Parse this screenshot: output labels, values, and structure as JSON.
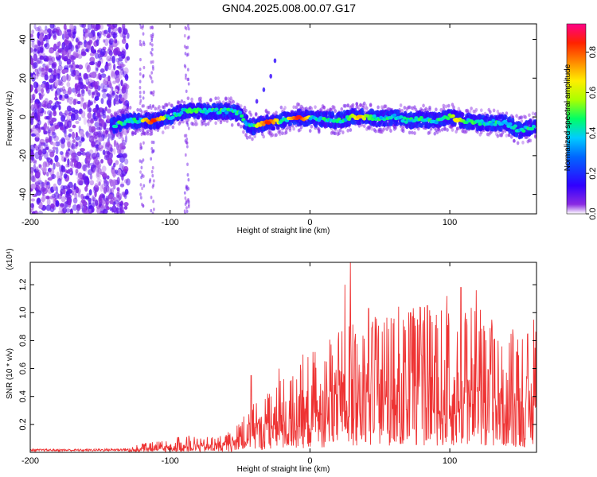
{
  "title": "GN04.2025.008.00.07.G17",
  "chart_data": [
    {
      "type": "heatmap",
      "xlabel": "Height of straight line (km)",
      "ylabel": "Frequency (Hz)",
      "xlim": [
        -200,
        162
      ],
      "ylim": [
        -50,
        48
      ],
      "xticks": [
        -200,
        -100,
        0,
        100
      ],
      "yticks": [
        -40,
        -20,
        0,
        20,
        40
      ],
      "grid": false,
      "colorbar": {
        "label": "Normalized spectral amplitude",
        "range": [
          0.0,
          0.94
        ],
        "ticks": [
          "0.0",
          "0.2",
          "0.4",
          "0.6",
          "0.8"
        ],
        "colormap": "rainbow",
        "stops": [
          "#ffffff",
          "#6a00ff",
          "#0000ff",
          "#00ccff",
          "#00ff66",
          "#ccff00",
          "#ffcc00",
          "#ff3300",
          "#ff0088"
        ]
      },
      "ridge": [
        {
          "x": -140,
          "y": -4.5
        },
        {
          "x": -130,
          "y": -2
        },
        {
          "x": -120,
          "y": -2
        },
        {
          "x": -110,
          "y": -2
        },
        {
          "x": -100,
          "y": 0
        },
        {
          "x": -90,
          "y": 3
        },
        {
          "x": -80,
          "y": 3
        },
        {
          "x": -70,
          "y": 3
        },
        {
          "x": -60,
          "y": 3
        },
        {
          "x": -50,
          "y": 2
        },
        {
          "x": -45,
          "y": -4
        },
        {
          "x": -40,
          "y": -5
        },
        {
          "x": -30,
          "y": -3
        },
        {
          "x": -20,
          "y": -2
        },
        {
          "x": -10,
          "y": 0
        },
        {
          "x": 0,
          "y": -1
        },
        {
          "x": 10,
          "y": -1
        },
        {
          "x": 20,
          "y": -2
        },
        {
          "x": 30,
          "y": 0
        },
        {
          "x": 40,
          "y": 0
        },
        {
          "x": 50,
          "y": -1
        },
        {
          "x": 60,
          "y": 0
        },
        {
          "x": 70,
          "y": -2
        },
        {
          "x": 80,
          "y": -1
        },
        {
          "x": 90,
          "y": -2
        },
        {
          "x": 100,
          "y": 0
        },
        {
          "x": 110,
          "y": -2
        },
        {
          "x": 120,
          "y": -3
        },
        {
          "x": 130,
          "y": -3
        },
        {
          "x": 140,
          "y": -3
        },
        {
          "x": 150,
          "y": -7
        },
        {
          "x": 160,
          "y": -5
        }
      ],
      "peaks": [
        {
          "x": -112,
          "y": -2,
          "amp": 0.9
        },
        {
          "x": -30,
          "y": -3,
          "amp": 0.9
        },
        {
          "x": -8,
          "y": 0,
          "amp": 0.92
        },
        {
          "x": 35,
          "y": 0,
          "amp": 0.75
        },
        {
          "x": 105,
          "y": -2,
          "amp": 0.7
        }
      ],
      "side_feature": [
        {
          "x": -45,
          "y": 0
        },
        {
          "x": -38,
          "y": 8
        },
        {
          "x": -33,
          "y": 14
        },
        {
          "x": -28,
          "y": 21
        },
        {
          "x": -25,
          "y": 29
        }
      ]
    },
    {
      "type": "line",
      "xlabel": "Height of straight line (km)",
      "ylabel": "SNR (10 * v/v)",
      "y_multiplier": "(x10⁴)",
      "xlim": [
        -200,
        162
      ],
      "ylim": [
        0,
        1.36
      ],
      "xticks": [
        -200,
        -100,
        0,
        100
      ],
      "yticks": [
        "0.2",
        "0.4",
        "0.6",
        "0.8",
        "1.0",
        "1.2"
      ],
      "color": "#ee3333",
      "grid": false,
      "envelope": [
        {
          "x": -200,
          "y": 0.02
        },
        {
          "x": -160,
          "y": 0.02
        },
        {
          "x": -130,
          "y": 0.025
        },
        {
          "x": -120,
          "y": 0.06
        },
        {
          "x": -110,
          "y": 0.07
        },
        {
          "x": -100,
          "y": 0.08
        },
        {
          "x": -90,
          "y": 0.12
        },
        {
          "x": -80,
          "y": 0.1
        },
        {
          "x": -70,
          "y": 0.1
        },
        {
          "x": -60,
          "y": 0.12
        },
        {
          "x": -50,
          "y": 0.2
        },
        {
          "x": -40,
          "y": 0.35
        },
        {
          "x": -30,
          "y": 0.4
        },
        {
          "x": -20,
          "y": 0.5
        },
        {
          "x": -10,
          "y": 0.55
        },
        {
          "x": 0,
          "y": 0.65
        },
        {
          "x": 10,
          "y": 0.7
        },
        {
          "x": 20,
          "y": 0.8
        },
        {
          "x": 30,
          "y": 0.85
        },
        {
          "x": 40,
          "y": 0.85
        },
        {
          "x": 50,
          "y": 0.9
        },
        {
          "x": 60,
          "y": 0.95
        },
        {
          "x": 70,
          "y": 0.95
        },
        {
          "x": 80,
          "y": 0.95
        },
        {
          "x": 90,
          "y": 0.95
        },
        {
          "x": 100,
          "y": 0.9
        },
        {
          "x": 110,
          "y": 0.95
        },
        {
          "x": 120,
          "y": 0.95
        },
        {
          "x": 130,
          "y": 0.85
        },
        {
          "x": 140,
          "y": 0.8
        },
        {
          "x": 150,
          "y": 0.75
        },
        {
          "x": 162,
          "y": 0.8
        }
      ],
      "spikes": [
        {
          "x": -42,
          "y": 0.55
        },
        {
          "x": -22,
          "y": 0.6
        },
        {
          "x": -5,
          "y": 0.7
        },
        {
          "x": 25,
          "y": 1.2
        },
        {
          "x": 29,
          "y": 1.36
        },
        {
          "x": 42,
          "y": 1.03
        },
        {
          "x": 58,
          "y": 0.96
        },
        {
          "x": 72,
          "y": 1.0
        },
        {
          "x": 84,
          "y": 1.05
        },
        {
          "x": 98,
          "y": 1.12
        },
        {
          "x": 108,
          "y": 1.18
        },
        {
          "x": 119,
          "y": 1.16
        },
        {
          "x": 130,
          "y": 0.95
        },
        {
          "x": 145,
          "y": 0.88
        },
        {
          "x": 160,
          "y": 0.95
        }
      ]
    }
  ]
}
